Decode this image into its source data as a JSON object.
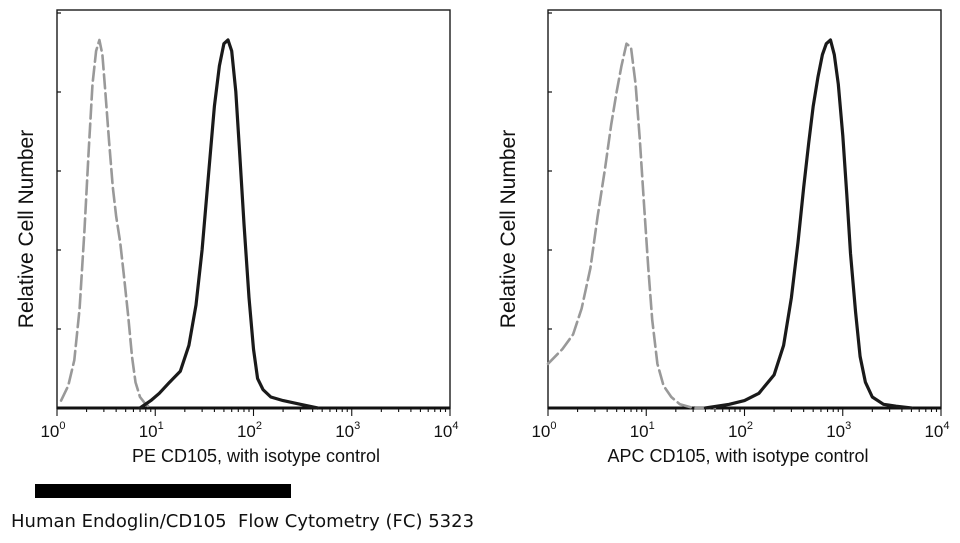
{
  "caption": "Human Endoglin/CD105  Flow Cytometry (FC) 5323",
  "chart_data": [
    {
      "type": "line",
      "xlabel": "PE CD105,  with isotype control",
      "ylabel": "Relative Cell Number",
      "x_scale": "log",
      "xlim": [
        1,
        10000
      ],
      "ylim": [
        0,
        1
      ],
      "x_ticks": [
        {
          "base": "10",
          "exp": "0"
        },
        {
          "base": "10",
          "exp": "1"
        },
        {
          "base": "10",
          "exp": "2"
        },
        {
          "base": "10",
          "exp": "3"
        },
        {
          "base": "10",
          "exp": "4"
        }
      ],
      "series": [
        {
          "style": "dashed",
          "color": "#999999",
          "x": [
            1.1,
            1.3,
            1.5,
            1.7,
            1.9,
            2.1,
            2.3,
            2.5,
            2.7,
            2.9,
            3.1,
            3.4,
            3.7,
            4.0,
            4.4,
            4.8,
            5.3,
            5.8,
            6.3,
            7.0,
            8.0,
            9.0
          ],
          "y": [
            0.02,
            0.06,
            0.13,
            0.27,
            0.48,
            0.7,
            0.88,
            0.97,
            1.0,
            0.96,
            0.86,
            0.72,
            0.6,
            0.52,
            0.45,
            0.36,
            0.25,
            0.14,
            0.07,
            0.03,
            0.01,
            0.0
          ]
        },
        {
          "style": "solid",
          "color": "#1a1a1a",
          "x": [
            7,
            9,
            11,
            14,
            18,
            22,
            26,
            30,
            35,
            40,
            45,
            50,
            55,
            60,
            66,
            72,
            80,
            90,
            100,
            110,
            125,
            150,
            200,
            300,
            450
          ],
          "y": [
            0.0,
            0.02,
            0.04,
            0.07,
            0.1,
            0.17,
            0.28,
            0.43,
            0.64,
            0.82,
            0.93,
            0.99,
            1.0,
            0.97,
            0.86,
            0.7,
            0.5,
            0.3,
            0.16,
            0.08,
            0.05,
            0.03,
            0.02,
            0.01,
            0.0
          ]
        }
      ]
    },
    {
      "type": "line",
      "xlabel": "APC CD105, with isotype control",
      "ylabel": "Relative Cell Number",
      "x_scale": "log",
      "xlim": [
        1,
        10000
      ],
      "ylim": [
        0,
        1
      ],
      "x_ticks": [
        {
          "base": "10",
          "exp": "0"
        },
        {
          "base": "10",
          "exp": "1"
        },
        {
          "base": "10",
          "exp": "2"
        },
        {
          "base": "10",
          "exp": "3"
        },
        {
          "base": "10",
          "exp": "4"
        }
      ],
      "series": [
        {
          "style": "dashed",
          "color": "#999999",
          "x": [
            1.0,
            1.4,
            1.8,
            2.2,
            2.7,
            3.2,
            3.8,
            4.4,
            5.0,
            5.6,
            6.3,
            7.0,
            7.8,
            8.6,
            9.5,
            10.5,
            11.5,
            13,
            15,
            18,
            22,
            30,
            50
          ],
          "y": [
            0.12,
            0.16,
            0.2,
            0.27,
            0.38,
            0.52,
            0.65,
            0.77,
            0.86,
            0.93,
            0.99,
            0.98,
            0.88,
            0.73,
            0.55,
            0.38,
            0.24,
            0.12,
            0.06,
            0.03,
            0.01,
            0.0,
            0.0
          ]
        },
        {
          "style": "solid",
          "color": "#1a1a1a",
          "x": [
            40,
            70,
            100,
            140,
            200,
            250,
            300,
            350,
            400,
            450,
            500,
            560,
            620,
            680,
            750,
            820,
            900,
            1000,
            1100,
            1200,
            1350,
            1500,
            1700,
            2000,
            2600,
            3500,
            5000
          ],
          "y": [
            0.0,
            0.01,
            0.02,
            0.04,
            0.09,
            0.17,
            0.3,
            0.45,
            0.6,
            0.72,
            0.82,
            0.9,
            0.96,
            0.99,
            1.0,
            0.96,
            0.88,
            0.74,
            0.58,
            0.42,
            0.26,
            0.14,
            0.07,
            0.03,
            0.01,
            0.005,
            0.0
          ]
        }
      ]
    }
  ]
}
